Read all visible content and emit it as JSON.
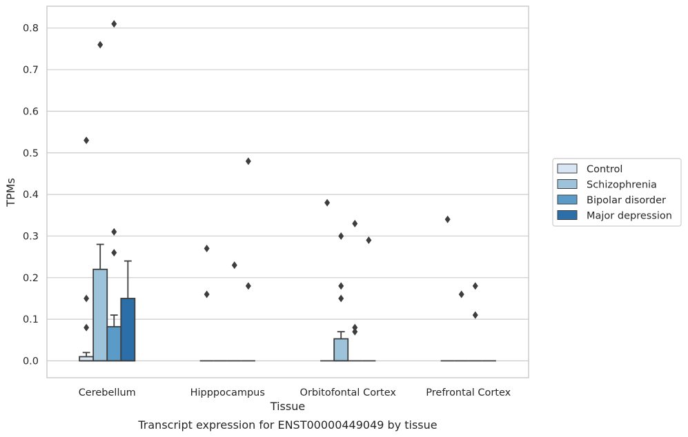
{
  "chart_data": {
    "type": "boxplot",
    "title": "",
    "caption": "Transcript expression for ENST00000449049 by tissue",
    "xlabel": "Tissue",
    "ylabel": "TPMs",
    "ylim": [
      -0.04,
      0.85
    ],
    "yticks": [
      "0.0",
      "0.1",
      "0.2",
      "0.3",
      "0.4",
      "0.5",
      "0.6",
      "0.7",
      "0.8"
    ],
    "grid": true,
    "legend_position": "right",
    "categories": [
      "Cerebellum",
      "Hipppocampus",
      "Orbitofontal Cortex",
      "Prefrontal Cortex"
    ],
    "series": [
      {
        "name": "Control",
        "color": "#d8e5f3",
        "boxes": [
          {
            "q1": 0.0,
            "median": 0.0,
            "q3": 0.01,
            "whisker_low": 0.0,
            "whisker_high": 0.02,
            "outliers": [
              0.53,
              0.15,
              0.08
            ]
          },
          {
            "q1": 0.0,
            "median": 0.0,
            "q3": 0.0,
            "whisker_low": 0.0,
            "whisker_high": 0.0,
            "outliers": [
              0.27,
              0.16
            ]
          },
          {
            "q1": 0.0,
            "median": 0.0,
            "q3": 0.0,
            "whisker_low": 0.0,
            "whisker_high": 0.0,
            "outliers": [
              0.38
            ]
          },
          {
            "q1": 0.0,
            "median": 0.0,
            "q3": 0.0,
            "whisker_low": 0.0,
            "whisker_high": 0.0,
            "outliers": [
              0.34
            ]
          }
        ]
      },
      {
        "name": "Schizophrenia",
        "color": "#9cc3da",
        "boxes": [
          {
            "q1": 0.0,
            "median": 0.0,
            "q3": 0.22,
            "whisker_low": 0.0,
            "whisker_high": 0.28,
            "outliers": [
              0.76
            ]
          },
          {
            "q1": 0.0,
            "median": 0.0,
            "q3": 0.0,
            "whisker_low": 0.0,
            "whisker_high": 0.0,
            "outliers": []
          },
          {
            "q1": 0.0,
            "median": 0.0,
            "q3": 0.053,
            "whisker_low": 0.0,
            "whisker_high": 0.07,
            "outliers": [
              0.3,
              0.18,
              0.15
            ]
          },
          {
            "q1": 0.0,
            "median": 0.0,
            "q3": 0.0,
            "whisker_low": 0.0,
            "whisker_high": 0.0,
            "outliers": [
              0.16
            ]
          }
        ]
      },
      {
        "name": "Bipolar disorder",
        "color": "#5a9bc7",
        "boxes": [
          {
            "q1": 0.0,
            "median": 0.0,
            "q3": 0.082,
            "whisker_low": 0.0,
            "whisker_high": 0.11,
            "outliers": [
              0.81,
              0.31,
              0.26
            ]
          },
          {
            "q1": 0.0,
            "median": 0.0,
            "q3": 0.0,
            "whisker_low": 0.0,
            "whisker_high": 0.0,
            "outliers": [
              0.23
            ]
          },
          {
            "q1": 0.0,
            "median": 0.0,
            "q3": 0.0,
            "whisker_low": 0.0,
            "whisker_high": 0.0,
            "outliers": [
              0.33,
              0.08,
              0.07
            ]
          },
          {
            "q1": 0.0,
            "median": 0.0,
            "q3": 0.0,
            "whisker_low": 0.0,
            "whisker_high": 0.0,
            "outliers": [
              0.18,
              0.11
            ]
          }
        ]
      },
      {
        "name": "Major depression",
        "color": "#2c6ea8",
        "boxes": [
          {
            "q1": 0.0,
            "median": 0.0,
            "q3": 0.15,
            "whisker_low": 0.0,
            "whisker_high": 0.24,
            "outliers": []
          },
          {
            "q1": 0.0,
            "median": 0.0,
            "q3": 0.0,
            "whisker_low": 0.0,
            "whisker_high": 0.0,
            "outliers": [
              0.48,
              0.18
            ]
          },
          {
            "q1": 0.0,
            "median": 0.0,
            "q3": 0.0,
            "whisker_low": 0.0,
            "whisker_high": 0.0,
            "outliers": [
              0.29
            ]
          },
          {
            "q1": 0.0,
            "median": 0.0,
            "q3": 0.0,
            "whisker_low": 0.0,
            "whisker_high": 0.0,
            "outliers": []
          }
        ]
      }
    ]
  }
}
